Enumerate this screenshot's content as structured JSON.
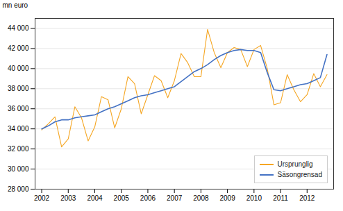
{
  "chart_data": {
    "type": "line",
    "ylabel": "mn euro",
    "x": [
      2002.0,
      2002.25,
      2002.5,
      2002.75,
      2003.0,
      2003.25,
      2003.5,
      2003.75,
      2004.0,
      2004.25,
      2004.5,
      2004.75,
      2005.0,
      2005.25,
      2005.5,
      2005.75,
      2006.0,
      2006.25,
      2006.5,
      2006.75,
      2007.0,
      2007.25,
      2007.5,
      2007.75,
      2008.0,
      2008.25,
      2008.5,
      2008.75,
      2009.0,
      2009.25,
      2009.5,
      2009.75,
      2010.0,
      2010.25,
      2010.5,
      2010.75,
      2011.0,
      2011.25,
      2011.5,
      2011.75,
      2012.0,
      2012.25,
      2012.5,
      2012.75
    ],
    "series": [
      {
        "name": "Ursprunglig",
        "color": "#f5a623",
        "values": [
          33900,
          34500,
          35200,
          32200,
          33000,
          36200,
          35100,
          32800,
          34200,
          37200,
          36900,
          34100,
          36000,
          39200,
          38500,
          35500,
          37400,
          39300,
          38800,
          37100,
          38800,
          41500,
          40600,
          39200,
          39200,
          43900,
          41600,
          40100,
          41600,
          42100,
          41900,
          40200,
          41900,
          42300,
          40000,
          36400,
          36600,
          39400,
          37900,
          36700,
          37400,
          39500,
          38200,
          39400
        ]
      },
      {
        "name": "Säsongrensad",
        "color": "#4472c4",
        "values": [
          34000,
          34300,
          34700,
          34900,
          34900,
          35100,
          35200,
          35300,
          35400,
          35700,
          36000,
          36200,
          36500,
          36800,
          37100,
          37300,
          37400,
          37600,
          37800,
          38000,
          38200,
          38700,
          39200,
          39700,
          40000,
          40400,
          40900,
          41300,
          41600,
          41800,
          41900,
          41800,
          41800,
          41600,
          39600,
          37900,
          37800,
          38000,
          38200,
          38400,
          38500,
          38800,
          39100,
          41400
        ]
      }
    ],
    "xlim": [
      2001.75,
      2013.0
    ],
    "xticks": [
      2002,
      2003,
      2004,
      2005,
      2006,
      2007,
      2008,
      2009,
      2010,
      2011,
      2012
    ],
    "ylim": [
      28000,
      45000
    ],
    "yticks": [
      {
        "value": 28000,
        "label": "28 000"
      },
      {
        "value": 30000,
        "label": "30 000"
      },
      {
        "value": 32000,
        "label": "32 000"
      },
      {
        "value": 34000,
        "label": "34 000"
      },
      {
        "value": 36000,
        "label": "36 000"
      },
      {
        "value": 38000,
        "label": "38 000"
      },
      {
        "value": 40000,
        "label": "40 000"
      },
      {
        "value": 42000,
        "label": "42 000"
      },
      {
        "value": 44000,
        "label": "44 000"
      }
    ],
    "grid": true,
    "legend": "lower right"
  }
}
